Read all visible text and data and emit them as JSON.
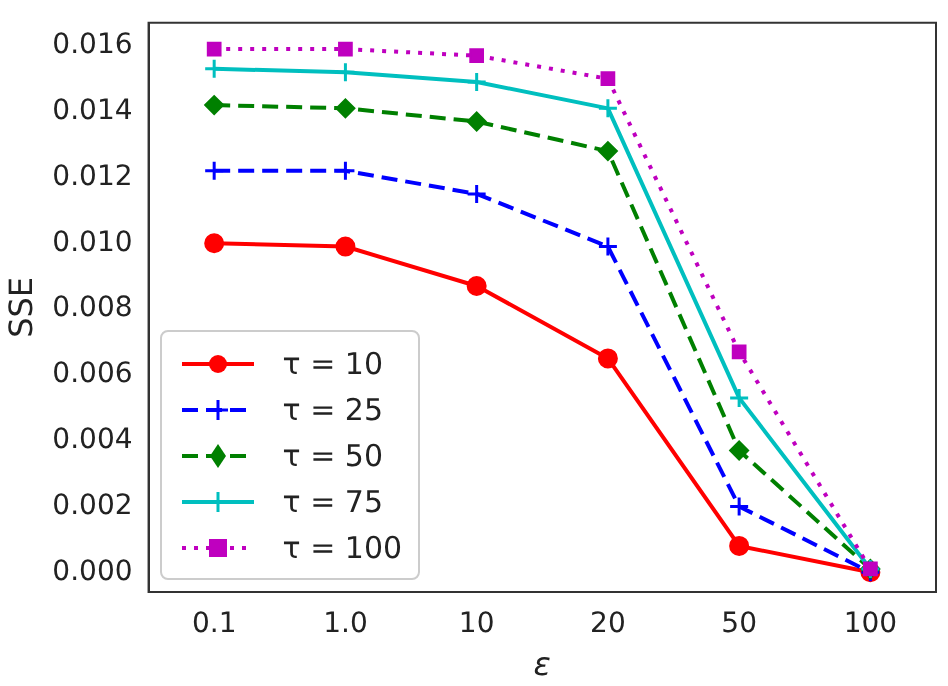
{
  "chart_data": {
    "type": "line",
    "xlabel": "ε",
    "ylabel": "SSE",
    "categories": [
      "0.1",
      "1.0",
      "10",
      "20",
      "50",
      "100"
    ],
    "series": [
      {
        "name": "τ = 10",
        "color": "#ff0000",
        "marker": "circle",
        "line_style": "solid",
        "values": [
          0.01,
          0.0099,
          0.0087,
          0.0065,
          0.0008,
          0.0
        ]
      },
      {
        "name": "τ = 25",
        "color": "#0000ff",
        "marker": "cross",
        "line_style": "dashed",
        "values": [
          0.0122,
          0.0122,
          0.0115,
          0.0099,
          0.002,
          0.0
        ]
      },
      {
        "name": "τ = 50",
        "color": "#008000",
        "marker": "diamond",
        "line_style": "dashed",
        "values": [
          0.0142,
          0.0141,
          0.0137,
          0.0128,
          0.0037,
          0.0001
        ]
      },
      {
        "name": "τ = 75",
        "color": "#00bfbf",
        "marker": "cross",
        "line_style": "solid",
        "values": [
          0.0153,
          0.0152,
          0.0149,
          0.0141,
          0.0053,
          0.0001
        ]
      },
      {
        "name": "τ = 100",
        "color": "#bf00bf",
        "marker": "square",
        "line_style": "dotted",
        "values": [
          0.0159,
          0.0159,
          0.0157,
          0.015,
          0.0067,
          0.0001
        ]
      }
    ],
    "ylim": [
      -0.0006,
      0.0167
    ],
    "yticks": [
      {
        "value": 0,
        "label": "0.000"
      },
      {
        "value": 0.002,
        "label": "0.002"
      },
      {
        "value": 0.004,
        "label": "0.004"
      },
      {
        "value": 0.006,
        "label": "0.006"
      },
      {
        "value": 0.008,
        "label": "0.008"
      },
      {
        "value": 0.01,
        "label": "0.010"
      },
      {
        "value": 0.012,
        "label": "0.012"
      },
      {
        "value": 0.014,
        "label": "0.014"
      },
      {
        "value": 0.016,
        "label": "0.016"
      }
    ],
    "legend": "bottom left",
    "grid": false
  }
}
